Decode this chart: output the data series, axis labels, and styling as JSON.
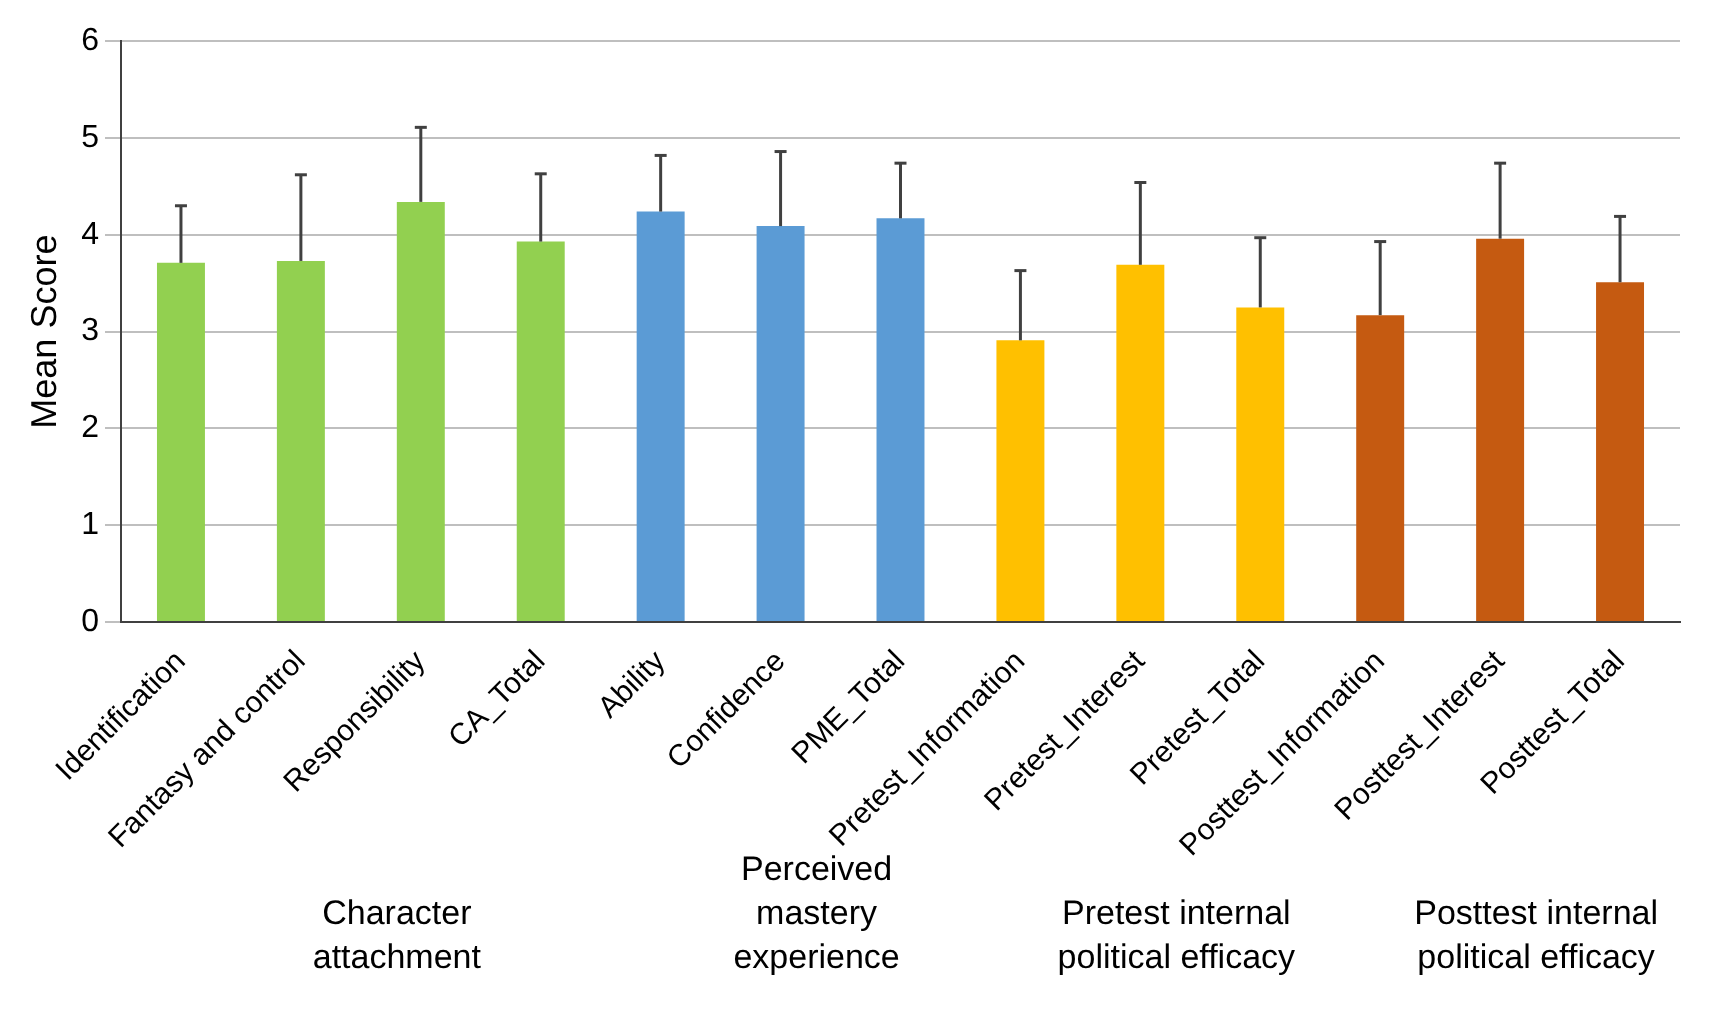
{
  "chart_data": {
    "type": "bar",
    "ylabel": "Mean Score",
    "categories": [
      "Identification",
      "Fantasy and control",
      "Responsibility",
      "CA_Total",
      "Ability",
      "Confidence",
      "PME_Total",
      "Pretest_Information",
      "Pretest_Interest",
      "Pretest_Total",
      "Posttest_Information",
      "Posttest_Interest",
      "Posttest_Total"
    ],
    "values": [
      3.71,
      3.73,
      4.34,
      3.93,
      4.24,
      4.09,
      4.17,
      2.91,
      3.69,
      3.25,
      3.17,
      3.96,
      3.51
    ],
    "errors": [
      [
        3.71,
        4.3
      ],
      [
        3.73,
        4.62
      ],
      [
        4.34,
        5.11
      ],
      [
        3.93,
        4.63
      ],
      [
        4.24,
        4.82
      ],
      [
        4.09,
        4.86
      ],
      [
        4.17,
        4.74
      ],
      [
        2.91,
        3.63
      ],
      [
        3.69,
        4.54
      ],
      [
        3.25,
        3.97
      ],
      [
        3.17,
        3.93
      ],
      [
        3.96,
        4.74
      ],
      [
        3.51,
        4.19
      ]
    ],
    "colors": [
      "#92d050",
      "#92d050",
      "#92d050",
      "#92d050",
      "#5b9bd5",
      "#5b9bd5",
      "#5b9bd5",
      "#ffc000",
      "#ffc000",
      "#ffc000",
      "#c55a11",
      "#c55a11",
      "#c55a11"
    ],
    "annotations": [
      "Character attachment",
      "Perceived mastery experience",
      "Pretest internal political efficacy",
      "Posttest internal political efficacy"
    ],
    "ylim": [
      0,
      6
    ],
    "yticks": [
      0,
      1,
      2,
      3,
      4,
      5,
      6
    ],
    "grid": "y",
    "legend": false
  }
}
